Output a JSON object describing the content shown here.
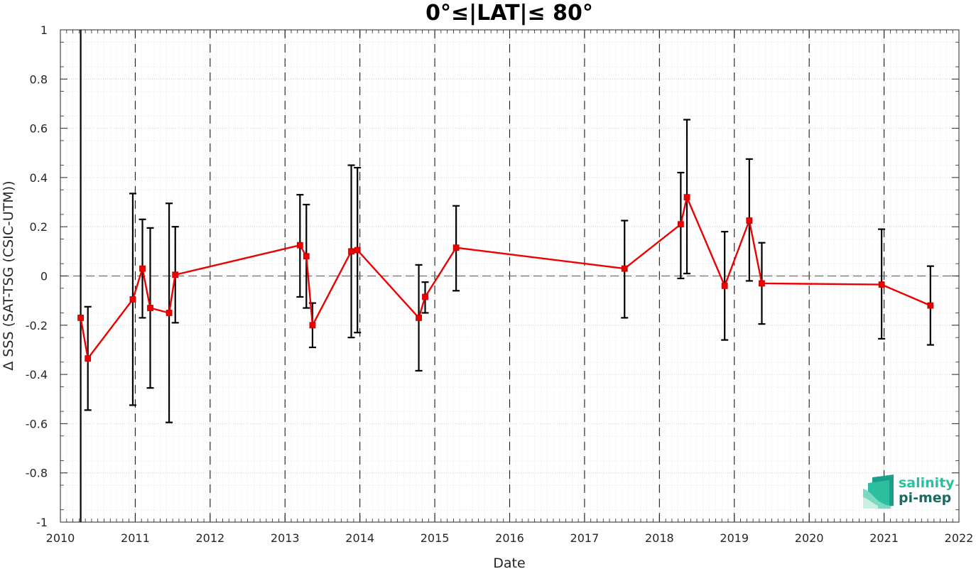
{
  "chart_data": {
    "type": "line",
    "title": "0°≤|LAT|≤ 80°",
    "xlabel": "Date",
    "ylabel": "Δ SSS (SAT-TSG (CSIC-UTM))",
    "xlim": [
      2010,
      2022
    ],
    "ylim": [
      -1,
      1
    ],
    "x_ticks": [
      "2010",
      "2011",
      "2012",
      "2013",
      "2014",
      "2015",
      "2016",
      "2017",
      "2018",
      "2019",
      "2020",
      "2021",
      "2022"
    ],
    "y_ticks": [
      "-1",
      "-0.8",
      "-0.6",
      "-0.4",
      "-0.2",
      "0",
      "0.2",
      "0.4",
      "0.6",
      "0.8",
      "1"
    ],
    "grid": true,
    "reference_line_y": 0,
    "year_boundaries": [
      "2011-01-01",
      "2012-01-01",
      "2013-01-01",
      "2014-01-01",
      "2015-01-01",
      "2016-01-01",
      "2017-01-01",
      "2018-01-01",
      "2019-01-01",
      "2020-01-01",
      "2021-01-01"
    ],
    "series": [
      {
        "marker": "square",
        "color": "#ee0000",
        "errorbar_color": "#000000",
        "points": [
          {
            "date": "2010-04-10",
            "y": -0.17,
            "low": -1.0,
            "high": 1.0
          },
          {
            "date": "2010-05-15",
            "y": -0.335,
            "low": -0.545,
            "high": -0.125
          },
          {
            "date": "2010-12-20",
            "y": -0.095,
            "low": -0.525,
            "high": 0.335
          },
          {
            "date": "2011-02-05",
            "y": 0.03,
            "low": -0.17,
            "high": 0.23
          },
          {
            "date": "2011-03-15",
            "y": -0.13,
            "low": -0.455,
            "high": 0.195
          },
          {
            "date": "2011-06-15",
            "y": -0.15,
            "low": -0.595,
            "high": 0.295
          },
          {
            "date": "2011-07-15",
            "y": 0.005,
            "low": -0.19,
            "high": 0.2
          },
          {
            "date": "2013-03-15",
            "y": 0.125,
            "low": -0.085,
            "high": 0.33
          },
          {
            "date": "2013-04-15",
            "y": 0.08,
            "low": -0.13,
            "high": 0.29
          },
          {
            "date": "2013-05-15",
            "y": -0.2,
            "low": -0.29,
            "high": -0.11
          },
          {
            "date": "2013-11-20",
            "y": 0.1,
            "low": -0.25,
            "high": 0.45
          },
          {
            "date": "2013-12-20",
            "y": 0.105,
            "low": -0.23,
            "high": 0.44
          },
          {
            "date": "2014-10-15",
            "y": -0.17,
            "low": -0.385,
            "high": 0.045
          },
          {
            "date": "2014-11-15",
            "y": -0.085,
            "low": -0.15,
            "high": -0.025
          },
          {
            "date": "2015-04-15",
            "y": 0.115,
            "low": -0.06,
            "high": 0.285
          },
          {
            "date": "2017-07-15",
            "y": 0.03,
            "low": -0.17,
            "high": 0.225
          },
          {
            "date": "2018-04-15",
            "y": 0.21,
            "low": -0.01,
            "high": 0.42
          },
          {
            "date": "2018-05-15",
            "y": 0.32,
            "low": 0.01,
            "high": 0.635
          },
          {
            "date": "2018-11-15",
            "y": -0.04,
            "low": -0.26,
            "high": 0.18
          },
          {
            "date": "2019-03-15",
            "y": 0.225,
            "low": -0.02,
            "high": 0.475
          },
          {
            "date": "2019-05-15",
            "y": -0.03,
            "low": -0.195,
            "high": 0.135
          },
          {
            "date": "2020-12-20",
            "y": -0.035,
            "low": -0.255,
            "high": 0.19
          },
          {
            "date": "2021-08-15",
            "y": -0.12,
            "low": -0.28,
            "high": 0.04
          }
        ]
      }
    ]
  },
  "logo": {
    "line1": "salinity",
    "line2": "pi-mep",
    "colors": [
      "#1aa08a",
      "#2bbfa0",
      "#7ad9c0",
      "#c9f0e3"
    ]
  }
}
